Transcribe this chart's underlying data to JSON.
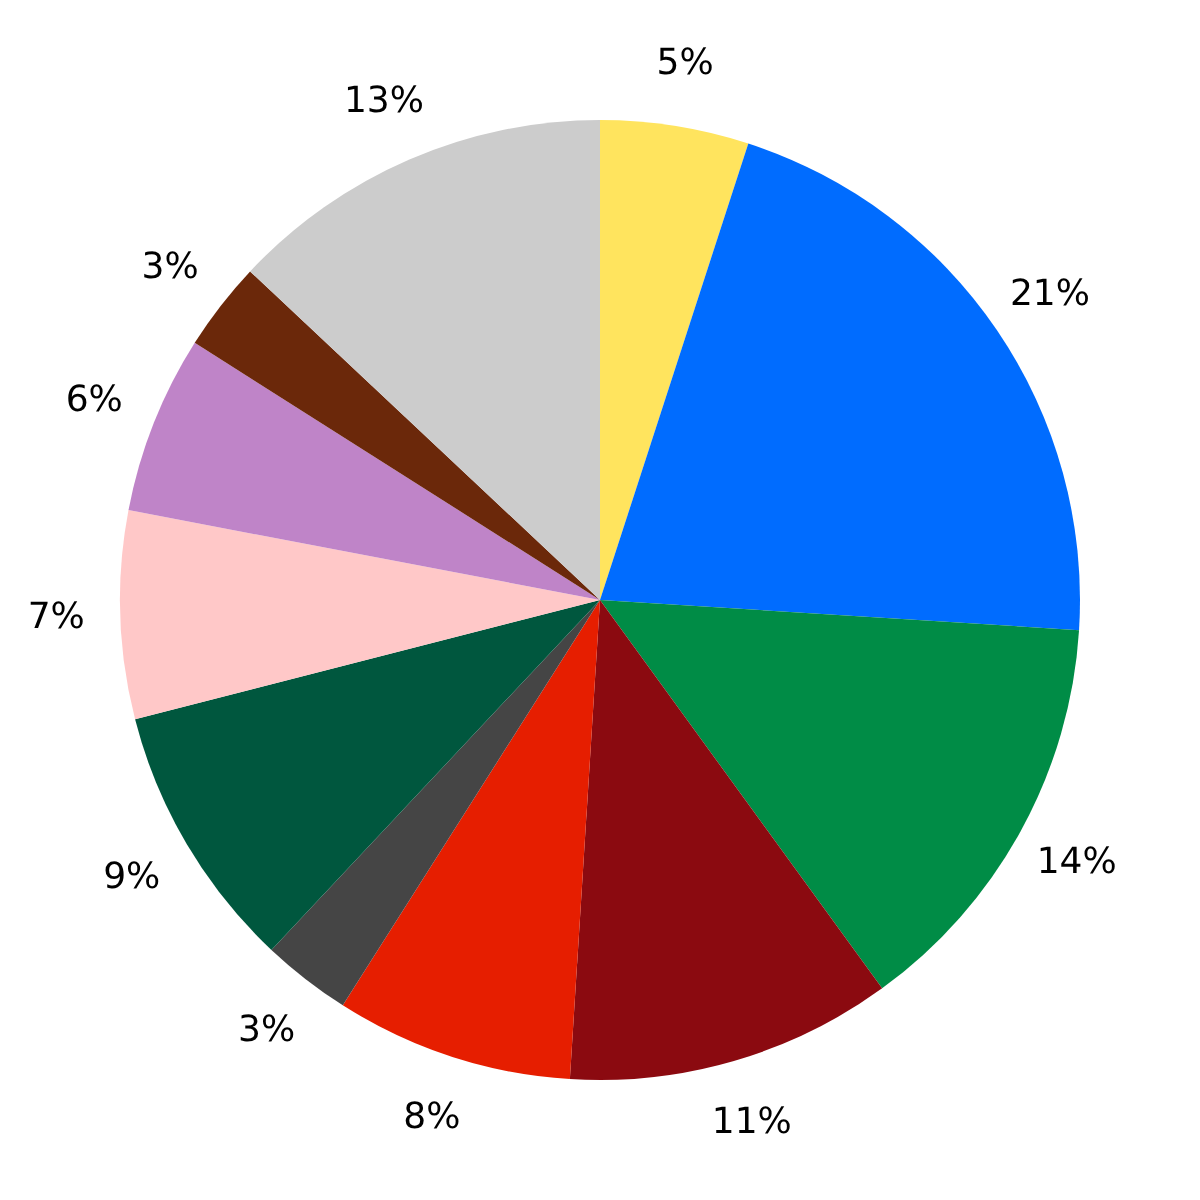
{
  "chart_data": {
    "type": "pie",
    "categories": [
      null,
      null,
      null,
      null,
      null,
      null,
      null,
      null,
      null,
      null,
      null
    ],
    "values": [
      5,
      21,
      14,
      11,
      8,
      3,
      9,
      7,
      6,
      3,
      13
    ],
    "value_labels": [
      "5%",
      "21%",
      "14%",
      "11%",
      "8%",
      "3%",
      "9%",
      "7%",
      "6%",
      "3%",
      "13%"
    ],
    "colors": [
      "#ffe45e",
      "#006cff",
      "#008c46",
      "#8b0a10",
      "#e61e00",
      "#454545",
      "#00573e",
      "#ffc8c8",
      "#bf84c8",
      "#6b280a",
      "#cccccc"
    ],
    "legend": false
  }
}
